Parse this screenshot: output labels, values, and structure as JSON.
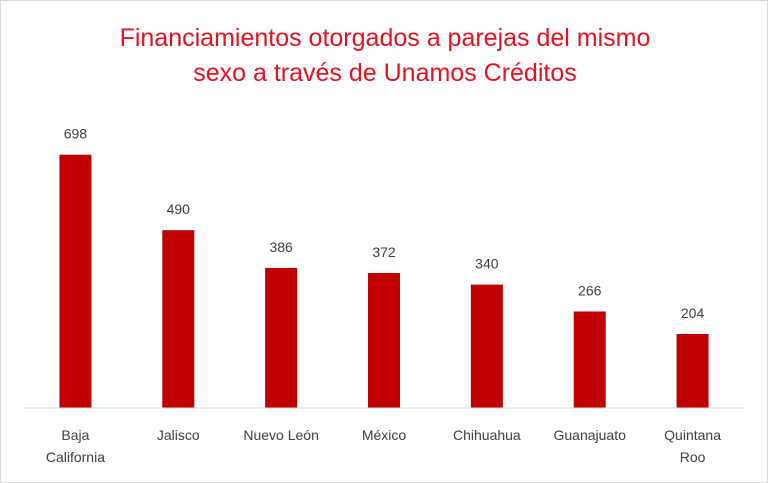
{
  "chart_data": {
    "type": "bar",
    "title_lines": [
      "Financiamientos otorgados a parejas del mismo",
      "sexo a través de Unamos Créditos"
    ],
    "categories": [
      [
        "Baja",
        "California"
      ],
      [
        "Jalisco"
      ],
      [
        "Nuevo León"
      ],
      [
        "México"
      ],
      [
        "Chihuahua"
      ],
      [
        "Guanajuato"
      ],
      [
        "Quintana",
        "Roo"
      ]
    ],
    "values": [
      698,
      490,
      386,
      372,
      340,
      266,
      204
    ],
    "bar_color": "#c00000",
    "title_color": "#e8101f",
    "ylim": [
      0,
      700
    ],
    "grid": false,
    "legend": "none"
  }
}
